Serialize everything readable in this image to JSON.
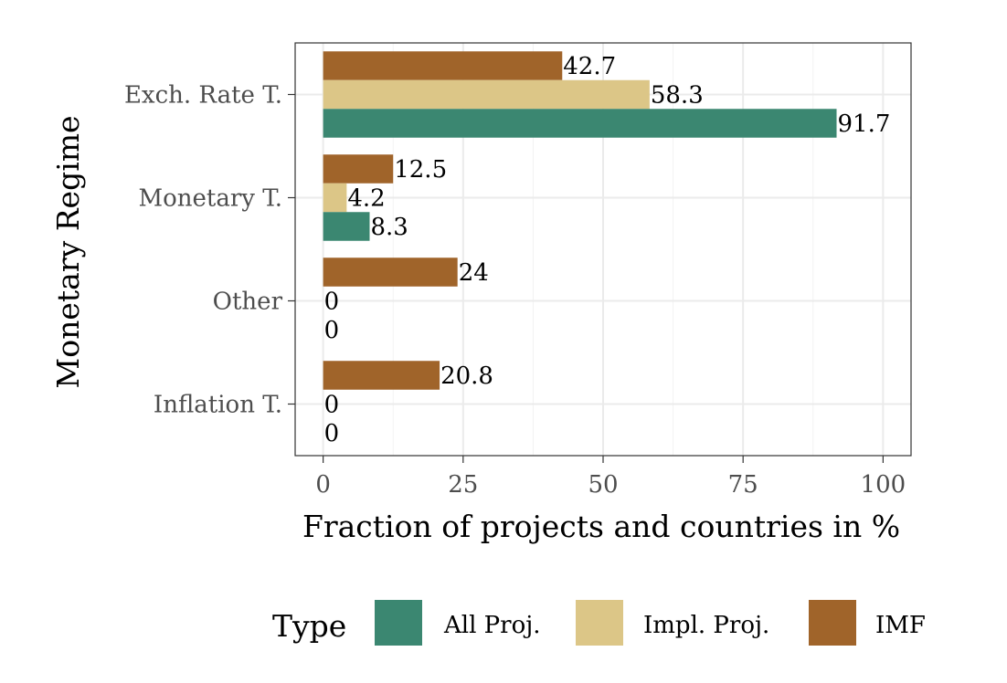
{
  "chart_data": {
    "type": "bar",
    "orientation": "horizontal",
    "categories": [
      "Exch. Rate T.",
      "Monetary T.",
      "Other",
      "Inflation T."
    ],
    "series": [
      {
        "name": "IMF",
        "values": [
          42.7,
          12.5,
          24,
          20.8
        ],
        "labels": [
          "42.7",
          "12.5",
          "24",
          "20.8"
        ]
      },
      {
        "name": "Impl. Proj.",
        "values": [
          58.3,
          4.2,
          0,
          0
        ],
        "labels": [
          "58.3",
          "4.2",
          "0",
          "0"
        ]
      },
      {
        "name": "All Proj.",
        "values": [
          91.7,
          8.3,
          0,
          0
        ],
        "labels": [
          "91.7",
          "8.3",
          "0",
          "0"
        ]
      }
    ],
    "xlabel": "Fraction of projects and countries in %",
    "ylabel": "Monetary Regime",
    "xlim": [
      -5,
      105
    ],
    "xticks": [
      0,
      25,
      50,
      75,
      100
    ],
    "xtick_labels": [
      "0",
      "25",
      "50",
      "75",
      "100"
    ],
    "grid": true,
    "legend": {
      "title": "Type",
      "position": "bottom",
      "entries": [
        {
          "label": "All Proj.",
          "color": "#3b8771"
        },
        {
          "label": "Impl. Proj.",
          "color": "#dcc687"
        },
        {
          "label": "IMF",
          "color": "#a0642a"
        }
      ]
    },
    "colors": {
      "IMF": "#a0642a",
      "Impl. Proj.": "#dcc687",
      "All Proj.": "#3b8771"
    }
  }
}
